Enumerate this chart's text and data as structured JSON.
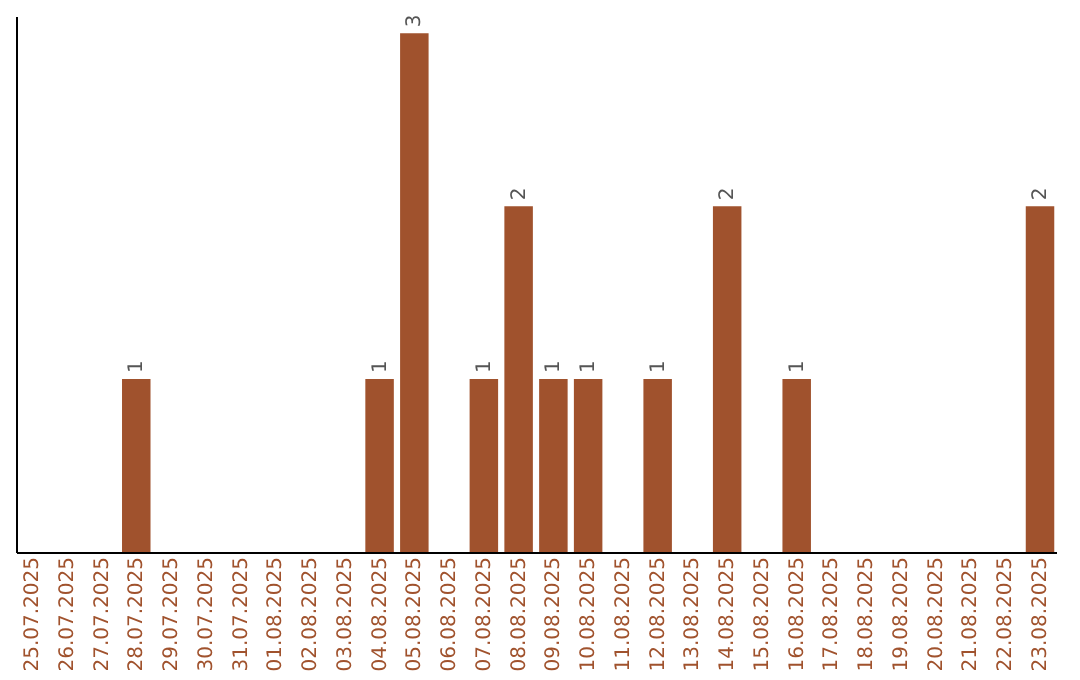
{
  "chart_data": {
    "type": "bar",
    "categories": [
      "25.07.2025",
      "26.07.2025",
      "27.07.2025",
      "28.07.2025",
      "29.07.2025",
      "30.07.2025",
      "31.07.2025",
      "01.08.2025",
      "02.08.2025",
      "03.08.2025",
      "04.08.2025",
      "05.08.2025",
      "06.08.2025",
      "07.08.2025",
      "08.08.2025",
      "09.08.2025",
      "10.08.2025",
      "11.08.2025",
      "12.08.2025",
      "13.08.2025",
      "14.08.2025",
      "15.08.2025",
      "16.08.2025",
      "17.08.2025",
      "18.08.2025",
      "19.08.2025",
      "20.08.2025",
      "21.08.2025",
      "22.08.2025",
      "23.08.2025"
    ],
    "values": [
      0,
      0,
      0,
      1,
      0,
      0,
      0,
      0,
      0,
      0,
      1,
      3,
      0,
      1,
      2,
      1,
      1,
      0,
      1,
      0,
      2,
      0,
      1,
      0,
      0,
      0,
      0,
      0,
      0,
      2
    ],
    "value_labels": [
      null,
      null,
      null,
      "1",
      null,
      null,
      null,
      null,
      null,
      null,
      "1",
      "3",
      null,
      "1",
      "2",
      "1",
      "1",
      null,
      "1",
      null,
      "2",
      null,
      "1",
      null,
      null,
      null,
      null,
      null,
      null,
      "2"
    ],
    "color": "#a0522d",
    "ylim": [
      0,
      3.1
    ],
    "tick_labels": "x",
    "grid": false
  }
}
